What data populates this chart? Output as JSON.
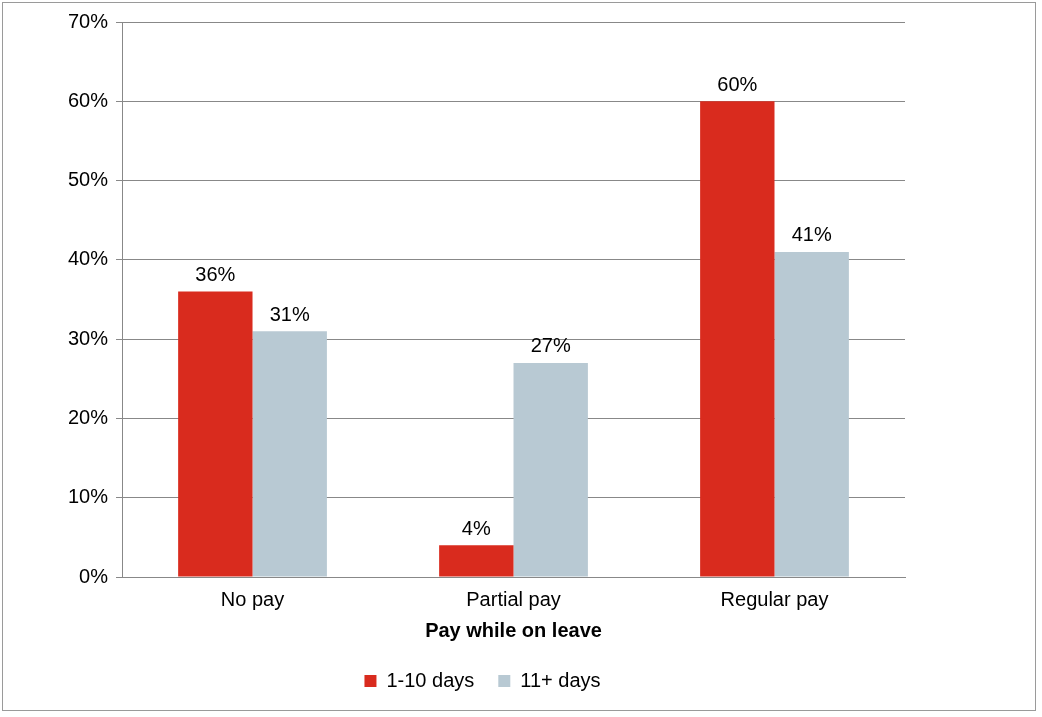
{
  "chart_data": {
    "type": "bar",
    "xlabel": "Pay while on leave",
    "categories": [
      "No pay",
      "Partial pay",
      "Regular pay"
    ],
    "series": [
      {
        "name": "1-10 days",
        "color": "#d92b1e",
        "values": [
          36,
          4,
          60
        ],
        "value_labels": [
          "36%",
          "4%",
          "60%"
        ]
      },
      {
        "name": "11+ days",
        "color": "#b8c9d3",
        "values": [
          31,
          27,
          41
        ],
        "value_labels": [
          "31%",
          "27%",
          "41%"
        ]
      }
    ],
    "ylim": [
      0,
      70
    ],
    "yticks": [
      {
        "value": 0,
        "label": "0%"
      },
      {
        "value": 10,
        "label": "10%"
      },
      {
        "value": 20,
        "label": "20%"
      },
      {
        "value": 30,
        "label": "30%"
      },
      {
        "value": 40,
        "label": "40%"
      },
      {
        "value": 50,
        "label": "50%"
      },
      {
        "value": 60,
        "label": "60%"
      },
      {
        "value": 70,
        "label": "70%"
      }
    ],
    "grid": "y",
    "legend": "bottom"
  }
}
